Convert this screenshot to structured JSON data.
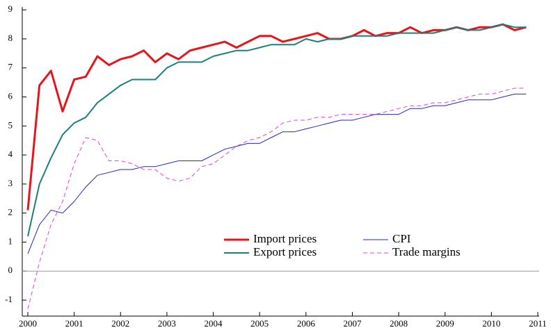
{
  "chart_data": {
    "type": "line",
    "x": [
      2000,
      2000.25,
      2000.5,
      2000.75,
      2001,
      2001.25,
      2001.5,
      2001.75,
      2002,
      2002.25,
      2002.5,
      2002.75,
      2003,
      2003.25,
      2003.5,
      2003.75,
      2004,
      2004.25,
      2004.5,
      2004.75,
      2005,
      2005.25,
      2005.5,
      2005.75,
      2006,
      2006.25,
      2006.5,
      2006.75,
      2007,
      2007.25,
      2007.5,
      2007.75,
      2008,
      2008.25,
      2008.5,
      2008.75,
      2009,
      2009.25,
      2009.5,
      2009.75,
      2010,
      2010.25,
      2010.5,
      2010.75
    ],
    "series": [
      {
        "name": "Import prices",
        "color": "#e8141c",
        "width": 3,
        "dashed": false,
        "values": [
          2.1,
          6.4,
          6.9,
          5.5,
          6.6,
          6.7,
          7.4,
          7.1,
          7.3,
          7.4,
          7.6,
          7.2,
          7.5,
          7.3,
          7.6,
          7.7,
          7.8,
          7.9,
          7.7,
          7.9,
          8.1,
          8.1,
          7.9,
          8.0,
          8.1,
          8.2,
          8.0,
          8.0,
          8.1,
          8.3,
          8.1,
          8.2,
          8.2,
          8.4,
          8.2,
          8.3,
          8.3,
          8.4,
          8.3,
          8.4,
          8.4,
          8.5,
          8.3,
          8.4
        ]
      },
      {
        "name": "Export prices",
        "color": "#1a8078",
        "width": 2,
        "dashed": false,
        "values": [
          1.2,
          3.0,
          3.9,
          4.7,
          5.1,
          5.3,
          5.8,
          6.1,
          6.4,
          6.6,
          6.6,
          6.6,
          7.0,
          7.2,
          7.2,
          7.2,
          7.4,
          7.5,
          7.6,
          7.6,
          7.7,
          7.8,
          7.8,
          7.8,
          8.0,
          7.9,
          8.0,
          8.0,
          8.1,
          8.1,
          8.1,
          8.1,
          8.2,
          8.2,
          8.2,
          8.2,
          8.3,
          8.4,
          8.3,
          8.3,
          8.4,
          8.5,
          8.4,
          8.4
        ]
      },
      {
        "name": "CPI",
        "color": "#2323c8",
        "width": 1,
        "dashed": false,
        "values": [
          0.6,
          1.6,
          2.1,
          2.0,
          2.4,
          2.9,
          3.3,
          3.4,
          3.5,
          3.5,
          3.6,
          3.6,
          3.7,
          3.8,
          3.8,
          3.8,
          4.0,
          4.2,
          4.3,
          4.4,
          4.4,
          4.6,
          4.8,
          4.8,
          4.9,
          5.0,
          5.1,
          5.2,
          5.2,
          5.3,
          5.4,
          5.4,
          5.4,
          5.6,
          5.6,
          5.7,
          5.7,
          5.8,
          5.9,
          5.9,
          5.9,
          6.0,
          6.1,
          6.1
        ]
      },
      {
        "name": "Trade margins",
        "color": "#e040e0",
        "width": 1,
        "dashed": true,
        "values": [
          -1.3,
          0.3,
          1.6,
          2.4,
          3.7,
          4.6,
          4.5,
          3.8,
          3.8,
          3.7,
          3.5,
          3.5,
          3.2,
          3.1,
          3.2,
          3.6,
          3.7,
          4.0,
          4.3,
          4.5,
          4.6,
          4.8,
          5.1,
          5.2,
          5.2,
          5.3,
          5.3,
          5.4,
          5.4,
          5.4,
          5.4,
          5.5,
          5.6,
          5.7,
          5.7,
          5.8,
          5.8,
          5.9,
          6.0,
          6.1,
          6.1,
          6.2,
          6.3,
          6.3
        ]
      }
    ],
    "xlim": [
      1999.88,
      2011.03
    ],
    "xticks": [
      2000,
      2001,
      2002,
      2003,
      2004,
      2005,
      2006,
      2007,
      2008,
      2009,
      2010,
      2011
    ],
    "ylim": [
      -1.55,
      9.1
    ],
    "yticks": [
      -1,
      0,
      1,
      2,
      3,
      4,
      5,
      6,
      7,
      8,
      9
    ],
    "zero_line": true,
    "legend": "lower center"
  }
}
